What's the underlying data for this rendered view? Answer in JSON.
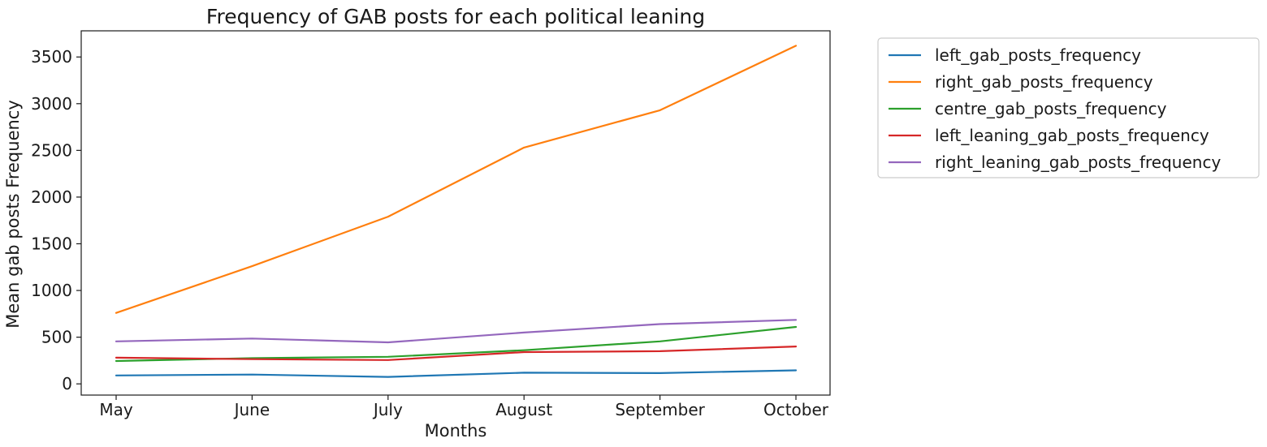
{
  "chart_data": {
    "type": "line",
    "title": "Frequency of GAB posts for each political leaning",
    "xlabel": "Months",
    "ylabel": "Mean gab posts Frequency",
    "categories": [
      "May",
      "June",
      "July",
      "August",
      "September",
      "October"
    ],
    "ylim": [
      -120,
      3780
    ],
    "yticks": [
      0,
      500,
      1000,
      1500,
      2000,
      2500,
      3000,
      3500
    ],
    "grid": false,
    "legend_position": "outside-top-right",
    "series": [
      {
        "name": "left_gab_posts_frequency",
        "color": "#1f77b4",
        "values": [
          90,
          100,
          75,
          120,
          115,
          145
        ]
      },
      {
        "name": "right_gab_posts_frequency",
        "color": "#ff7f0e",
        "values": [
          760,
          1260,
          1790,
          2530,
          2930,
          3620
        ]
      },
      {
        "name": "centre_gab_posts_frequency",
        "color": "#2ca02c",
        "values": [
          245,
          275,
          290,
          360,
          455,
          610
        ]
      },
      {
        "name": "left_leaning_gab_posts_frequency",
        "color": "#d62728",
        "values": [
          280,
          265,
          255,
          340,
          350,
          400
        ]
      },
      {
        "name": "right_leaning_gab_posts_frequency",
        "color": "#9467bd",
        "values": [
          455,
          485,
          445,
          550,
          640,
          685
        ]
      }
    ]
  }
}
